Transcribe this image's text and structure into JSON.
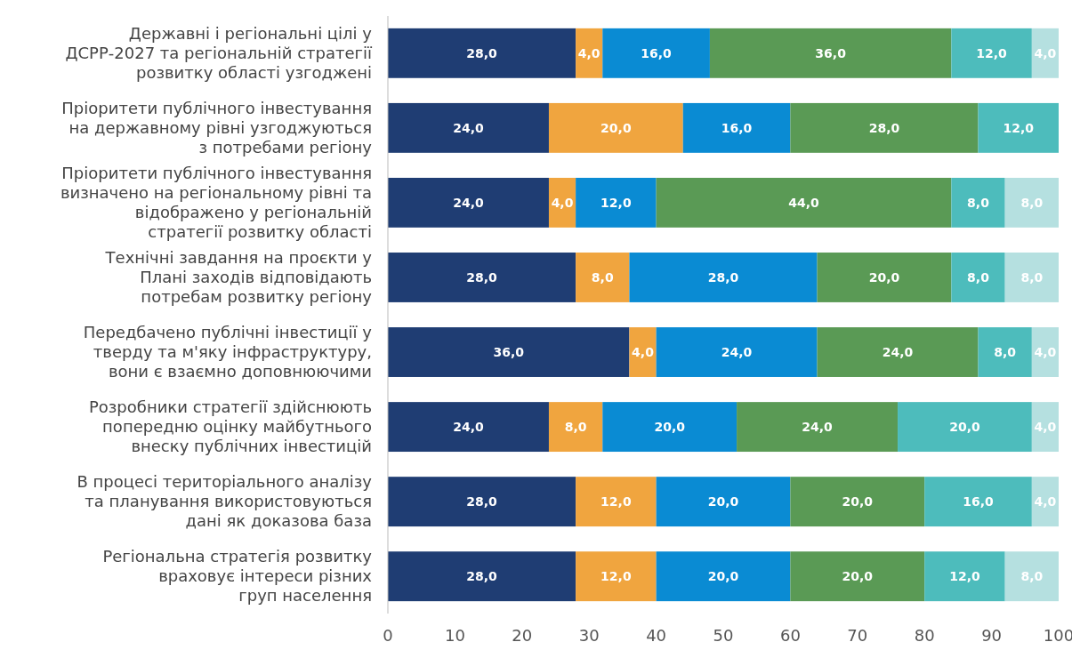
{
  "chart_data": {
    "type": "bar",
    "orientation": "horizontal",
    "stacked": true,
    "categories": [
      "Державні і регіональні цілі у\nДСРР-2027 та регіональній стратегії\nрозвитку області узгоджені",
      "Пріоритети публічного інвестування\nна державному рівні узгоджуються\nз потребами регіону",
      "Пріоритети публічного інвестування\nвизначено на регіональному рівні та\nвідображено у регіональній\nстратегії розвитку області",
      "Технічні завдання на проєкти у\nПлані заходів відповідають\nпотребам розвитку регіону",
      "Передбачено публічні інвестиції у\nтверду та м'яку інфраструктуру,\nвони є взаємно доповнюючими",
      "Розробники стратегії здійснюють\nпопередню оцінку майбутнього\nвнеску публічних інвестицій",
      "В процесі територіального аналізу\nта планування використовуються\nдані як доказова база",
      "Регіональна стратегія розвитку\nвраховує інтереси різних\nгруп населення"
    ],
    "series": [
      {
        "color": "#1f3d73",
        "values": [
          28,
          24,
          24,
          28,
          36,
          24,
          28,
          28
        ],
        "value_labels": [
          "28,0",
          "24,0",
          "24,0",
          "28,0",
          "36,0",
          "24,0",
          "28,0",
          "28,0"
        ]
      },
      {
        "color": "#f0a53f",
        "values": [
          4,
          20,
          4,
          8,
          4,
          8,
          12,
          12
        ],
        "value_labels": [
          "4,0",
          "20,0",
          "4,0",
          "8,0",
          "4,0",
          "8,0",
          "12,0",
          "12,0"
        ]
      },
      {
        "color": "#0a8bd3",
        "values": [
          16,
          16,
          12,
          28,
          24,
          20,
          20,
          20
        ],
        "value_labels": [
          "16,0",
          "16,0",
          "12,0",
          "28,0",
          "24,0",
          "20,0",
          "20,0",
          "20,0"
        ]
      },
      {
        "color": "#5a9a55",
        "values": [
          36,
          28,
          44,
          20,
          24,
          24,
          20,
          20
        ],
        "value_labels": [
          "36,0",
          "28,0",
          "44,0",
          "20,0",
          "24,0",
          "24,0",
          "20,0",
          "20,0"
        ]
      },
      {
        "color": "#4dbcbc",
        "values": [
          12,
          12,
          8,
          8,
          8,
          20,
          16,
          12
        ],
        "value_labels": [
          "12,0",
          "12,0",
          "8,0",
          "8,0",
          "8,0",
          "20,0",
          "16,0",
          "12,0"
        ]
      },
      {
        "color": "#b5e0e0",
        "values": [
          4,
          null,
          8,
          8,
          4,
          4,
          4,
          8
        ],
        "value_labels": [
          "4,0",
          null,
          "8,0",
          "8,0",
          "4,0",
          "4,0",
          "4,0",
          "8,0"
        ]
      }
    ],
    "xlim": [
      0,
      100
    ],
    "xticks": [
      0,
      10,
      20,
      30,
      40,
      50,
      60,
      70,
      80,
      90,
      100
    ]
  }
}
